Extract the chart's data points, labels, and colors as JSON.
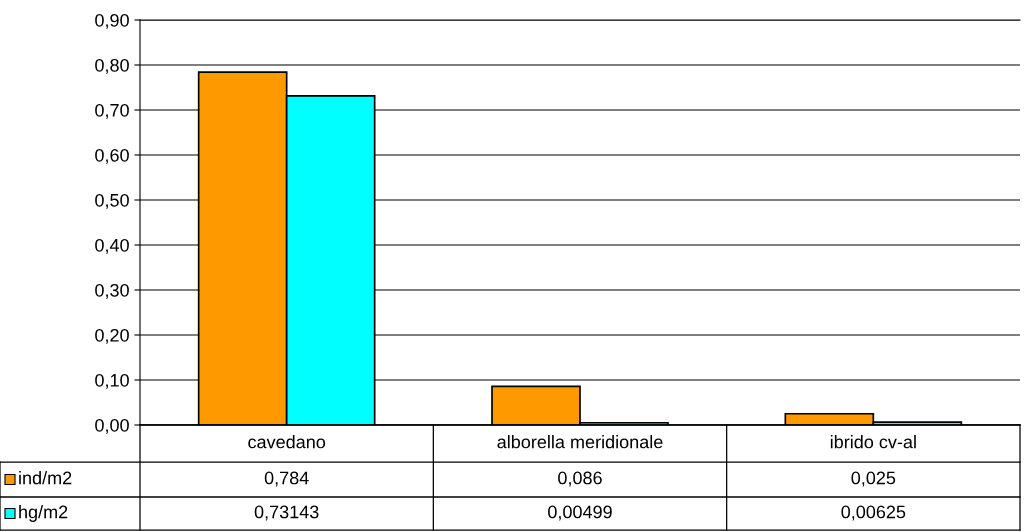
{
  "chart_data": {
    "type": "bar",
    "categories": [
      "cavedano",
      "alborella meridionale",
      "ibrido cv-al"
    ],
    "series": [
      {
        "name": "ind/m2",
        "color": "#ff9900",
        "values": [
          0.784,
          0.086,
          0.025
        ],
        "value_labels": [
          "0,784",
          "0,086",
          "0,025"
        ]
      },
      {
        "name": "hg/m2",
        "color": "#00ffff",
        "values": [
          0.73143,
          0.00499,
          0.00625
        ],
        "value_labels": [
          "0,73143",
          "0,00499",
          "0,00625"
        ]
      }
    ],
    "ylim": [
      0,
      0.9
    ],
    "yticks": [
      {
        "value": 0,
        "label": "0,00"
      },
      {
        "value": 0.1,
        "label": "0,10"
      },
      {
        "value": 0.2,
        "label": "0,20"
      },
      {
        "value": 0.3,
        "label": "0,30"
      },
      {
        "value": 0.4,
        "label": "0,40"
      },
      {
        "value": 0.5,
        "label": "0,50"
      },
      {
        "value": 0.6,
        "label": "0,60"
      },
      {
        "value": 0.7,
        "label": "0,70"
      },
      {
        "value": 0.8,
        "label": "0,80"
      },
      {
        "value": 0.9,
        "label": "0,90"
      }
    ],
    "grid": "y",
    "legend": "bottom left"
  }
}
